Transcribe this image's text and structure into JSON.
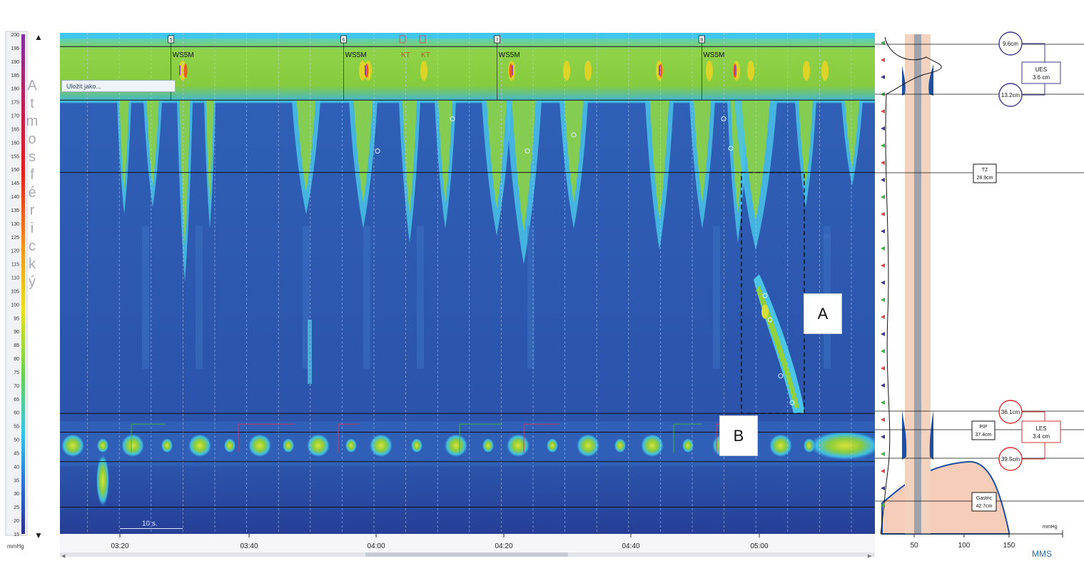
{
  "colorbar": {
    "labels": [
      "200",
      "195",
      "190",
      "185",
      "180",
      "175",
      "170",
      "165",
      "160",
      "155",
      "150",
      "145",
      "140",
      "135",
      "130",
      "125",
      "120",
      "115",
      "110",
      "105",
      "100",
      "95",
      "90",
      "85",
      "80",
      "75",
      "70",
      "65",
      "60",
      "55",
      "50",
      "45",
      "40",
      "35",
      "30",
      "25",
      "20",
      "15"
    ],
    "unit": "mmHg",
    "vertical_text": "Atmosférický",
    "colors": [
      "#2b2f8f",
      "#2f6fd0",
      "#37c4e8",
      "#6ccf50",
      "#e8e020",
      "#f09020",
      "#e02020",
      "#c02050",
      "#8030a0"
    ]
  },
  "toolbar": {
    "save_as_label": "Uložit jako..."
  },
  "chart_data": {
    "type": "heatmap",
    "title": "",
    "xlabel": "",
    "ylabel": "mmHg",
    "ylim": [
      15,
      200
    ],
    "x_ticks": [
      "03:20",
      "03:40",
      "04:00",
      "04:20",
      "04:40",
      "05:00"
    ],
    "scale_bar": "10 s.",
    "swallow_markers": [
      {
        "number": "5",
        "label": "WS5M",
        "time": "03:28"
      },
      {
        "number": "6",
        "label": "WS5M",
        "time": "03:55"
      },
      {
        "number": "7",
        "label": "WS5M",
        "time": "04:19"
      },
      {
        "number": "8",
        "label": "WS5M",
        "time": "04:51"
      }
    ],
    "event_labels": [
      "KT",
      "KT"
    ],
    "horizontal_lines_mmHg": [
      197,
      177,
      150,
      60,
      53,
      42,
      25
    ],
    "regions": [
      {
        "label": "A",
        "description_from_image": "dashed box region"
      },
      {
        "label": "B",
        "description_from_image": "LES region"
      }
    ]
  },
  "side_panel": {
    "markers": [
      {
        "value": "9.6cm",
        "color": "#3a3a8a"
      },
      {
        "value": "13.2cm",
        "color": "#3a3a8a"
      },
      {
        "value": "36.1cm",
        "color": "#d83030"
      },
      {
        "value": "39.5cm",
        "color": "#d83030"
      }
    ],
    "ues": {
      "name": "UES",
      "value": "3.6 cm",
      "color": "#3a3a8a"
    },
    "les": {
      "name": "LES",
      "value": "3.4 cm",
      "color": "#d83030"
    },
    "tz": {
      "name": "TZ",
      "value": "28.9cm"
    },
    "pip": {
      "name": "PIP",
      "value": "37.4cm"
    },
    "gastric": {
      "name": "Gastric",
      "value": "42.7cm"
    },
    "unit": "mmHg",
    "x_ticks": [
      "50",
      "50",
      "100",
      "150"
    ],
    "logo": "MMS"
  },
  "callouts": {
    "a": "A",
    "b": "B"
  }
}
